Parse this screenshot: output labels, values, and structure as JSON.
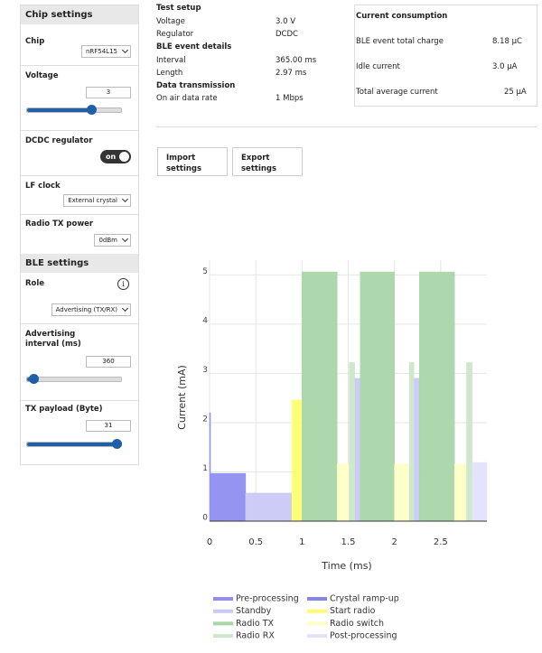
{
  "chip_settings": {
    "title": "Chip settings",
    "fields": [
      {
        "label": "Chip",
        "value": "nRF54L15"
      },
      {
        "label": "Voltage",
        "value": "3"
      },
      {
        "label": "DCDC regulator",
        "value": "on"
      },
      {
        "label": "LF clock",
        "value": "External crystal"
      },
      {
        "label": "Radio TX power",
        "value": "0dBm"
      }
    ]
  },
  "ble_settings": {
    "title": "BLE settings",
    "fields": [
      {
        "label": "Role",
        "value": "Advertising (TX/RX)"
      },
      {
        "label": "Advertising interval (ms)",
        "value": "360"
      },
      {
        "label": "TX payload (Byte)",
        "value": "31"
      }
    ]
  },
  "test_setup": {
    "title": "Test setup",
    "rows": [
      [
        "Voltage",
        "3.0 V"
      ],
      [
        "Regulator",
        "DCDC"
      ]
    ],
    "ble_event_title": "BLE event details",
    "ble_rows": [
      [
        "Interval",
        "365.00 ms"
      ],
      [
        "Length",
        "2.97 ms"
      ]
    ],
    "data_title": "Data transmission",
    "data_rows": [
      [
        "On air data rate",
        "1 Mbps"
      ]
    ]
  },
  "current_consumption": {
    "title": "Current consumption",
    "rows": [
      [
        "BLE event total charge",
        "8.18 µC"
      ],
      [
        "Idle current",
        "3.0 µA"
      ],
      [
        "Total average current",
        "25 µA"
      ]
    ]
  },
  "buttons": [
    "Import settings",
    "Export settings"
  ],
  "chart_data": {
    "type": "step",
    "xlabel": "Time (ms)",
    "ylabel": "Current (mA)",
    "xlim": [
      0,
      3.0
    ],
    "ylim": [
      0,
      5.3
    ],
    "xticks": [
      0,
      0.5,
      1,
      1.5,
      2,
      2.5
    ],
    "yticks": [
      0,
      1,
      2,
      3,
      4,
      5
    ],
    "grid": true,
    "series": [
      {
        "name": "Pre-processing",
        "color": "#8f8ff0",
        "x": [
          0,
          0.01
        ],
        "x_end": [
          0.01,
          0.39
        ],
        "values": [
          2.2,
          0.97
        ]
      },
      {
        "name": "Crystal ramp-up",
        "color": "#8585e6",
        "x": [],
        "x_end": [],
        "values": []
      },
      {
        "name": "Standby",
        "color": "#c9c9f6",
        "x": [
          0.39,
          1.57,
          2.21
        ],
        "x_end": [
          0.89,
          1.63,
          2.27
        ],
        "values": [
          0.57,
          2.9,
          2.9
        ]
      },
      {
        "name": "Start radio",
        "color": "#ffff70",
        "x": [
          0.89
        ],
        "x_end": [
          1.0
        ],
        "values": [
          2.46
        ]
      },
      {
        "name": "Radio TX",
        "color": "#a9d6a9",
        "x": [
          1.0,
          1.63,
          2.27
        ],
        "x_end": [
          1.38,
          2.0,
          2.65
        ],
        "values": [
          5.06,
          5.06,
          5.06
        ]
      },
      {
        "name": "Radio switch",
        "color": "#ffffc6",
        "x": [
          1.38,
          2.0,
          2.65
        ],
        "x_end": [
          1.51,
          2.16,
          2.78
        ],
        "values": [
          1.16,
          1.16,
          1.16
        ]
      },
      {
        "name": "Radio RX",
        "color": "#cbe7cb",
        "x": [
          1.51,
          2.16,
          2.78
        ],
        "x_end": [
          1.57,
          2.21,
          2.84
        ],
        "values": [
          3.22,
          3.22,
          3.22
        ]
      },
      {
        "name": "Post-processing",
        "color": "#e2e2fb",
        "x": [
          2.84
        ],
        "x_end": [
          3.0
        ],
        "values": [
          1.19
        ]
      }
    ]
  }
}
